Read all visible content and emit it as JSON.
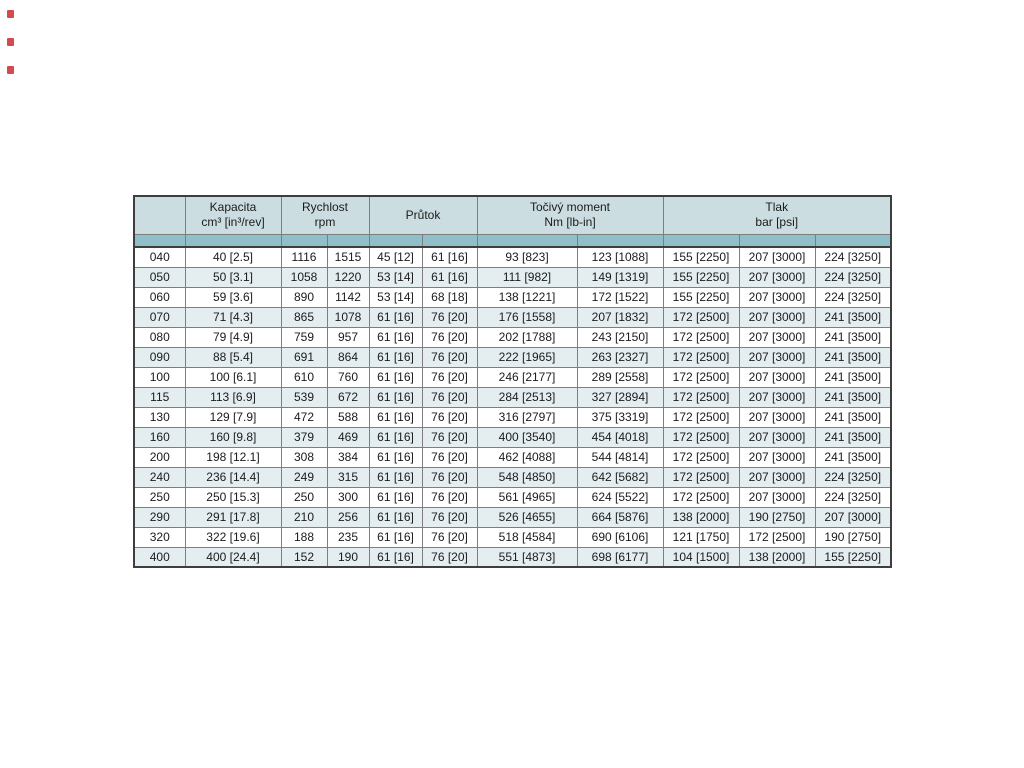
{
  "page": {
    "colors": {
      "header_bg": "#ccdde1",
      "band_bg": "#8fbfc9",
      "stripe_bg": "#e4eef1",
      "row_bg": "#ffffff",
      "border_inner": "#7e7e7e",
      "border_outer": "#3e3e3e",
      "text": "#1b1b1b",
      "artifact_red": "#cc2a2a"
    }
  },
  "table": {
    "headers": {
      "model": "",
      "capacity_line1": "Kapacita",
      "capacity_line2": "cm³ [in³/rev]",
      "speed_line1": "Rychlost",
      "speed_line2": "rpm",
      "flow": "Průtok",
      "torque_line1": "Točivý moment",
      "torque_line2": "Nm [lb-in]",
      "pressure_line1": "Tlak",
      "pressure_line2": "bar [psi]"
    },
    "column_keys": [
      "model",
      "capacity",
      "speed-min",
      "speed-max",
      "flow-min",
      "flow-max",
      "torque-a",
      "torque-b",
      "pressure-a",
      "pressure-b",
      "pressure-c"
    ],
    "rows": [
      [
        "040",
        "40 [2.5]",
        "1116",
        "1515",
        "45 [12]",
        "61 [16]",
        "93 [823]",
        "123 [1088]",
        "155 [2250]",
        "207 [3000]",
        "224 [3250]"
      ],
      [
        "050",
        "50 [3.1]",
        "1058",
        "1220",
        "53 [14]",
        "61 [16]",
        "111 [982]",
        "149 [1319]",
        "155 [2250]",
        "207 [3000]",
        "224 [3250]"
      ],
      [
        "060",
        "59 [3.6]",
        "890",
        "1142",
        "53 [14]",
        "68 [18]",
        "138 [1221]",
        "172 [1522]",
        "155 [2250]",
        "207 [3000]",
        "224 [3250]"
      ],
      [
        "070",
        "71 [4.3]",
        "865",
        "1078",
        "61 [16]",
        "76 [20]",
        "176 [1558]",
        "207 [1832]",
        "172 [2500]",
        "207 [3000]",
        "241 [3500]"
      ],
      [
        "080",
        "79 [4.9]",
        "759",
        "957",
        "61 [16]",
        "76 [20]",
        "202 [1788]",
        "243 [2150]",
        "172 [2500]",
        "207 [3000]",
        "241 [3500]"
      ],
      [
        "090",
        "88 [5.4]",
        "691",
        "864",
        "61 [16]",
        "76 [20]",
        "222 [1965]",
        "263 [2327]",
        "172 [2500]",
        "207 [3000]",
        "241 [3500]"
      ],
      [
        "100",
        "100 [6.1]",
        "610",
        "760",
        "61 [16]",
        "76 [20]",
        "246 [2177]",
        "289 [2558]",
        "172 [2500]",
        "207 [3000]",
        "241 [3500]"
      ],
      [
        "115",
        "113 [6.9]",
        "539",
        "672",
        "61 [16]",
        "76 [20]",
        "284 [2513]",
        "327 [2894]",
        "172 [2500]",
        "207 [3000]",
        "241 [3500]"
      ],
      [
        "130",
        "129 [7.9]",
        "472",
        "588",
        "61 [16]",
        "76 [20]",
        "316 [2797]",
        "375 [3319]",
        "172 [2500]",
        "207 [3000]",
        "241 [3500]"
      ],
      [
        "160",
        "160 [9.8]",
        "379",
        "469",
        "61 [16]",
        "76 [20]",
        "400 [3540]",
        "454 [4018]",
        "172 [2500]",
        "207 [3000]",
        "241 [3500]"
      ],
      [
        "200",
        "198 [12.1]",
        "308",
        "384",
        "61 [16]",
        "76 [20]",
        "462 [4088]",
        "544 [4814]",
        "172 [2500]",
        "207 [3000]",
        "241 [3500]"
      ],
      [
        "240",
        "236 [14.4]",
        "249",
        "315",
        "61 [16]",
        "76 [20]",
        "548 [4850]",
        "642 [5682]",
        "172 [2500]",
        "207 [3000]",
        "224 [3250]"
      ],
      [
        "250",
        "250 [15.3]",
        "250",
        "300",
        "61 [16]",
        "76 [20]",
        "561 [4965]",
        "624 [5522]",
        "172 [2500]",
        "207 [3000]",
        "224 [3250]"
      ],
      [
        "290",
        "291 [17.8]",
        "210",
        "256",
        "61 [16]",
        "76 [20]",
        "526 [4655]",
        "664 [5876]",
        "138 [2000]",
        "190 [2750]",
        "207 [3000]"
      ],
      [
        "320",
        "322 [19.6]",
        "188",
        "235",
        "61 [16]",
        "76 [20]",
        "518 [4584]",
        "690 [6106]",
        "121 [1750]",
        "172 [2500]",
        "190 [2750]"
      ],
      [
        "400",
        "400 [24.4]",
        "152",
        "190",
        "61 [16]",
        "76 [20]",
        "551 [4873]",
        "698 [6177]",
        "104 [1500]",
        "138 [2000]",
        "155 [2250]"
      ]
    ]
  }
}
